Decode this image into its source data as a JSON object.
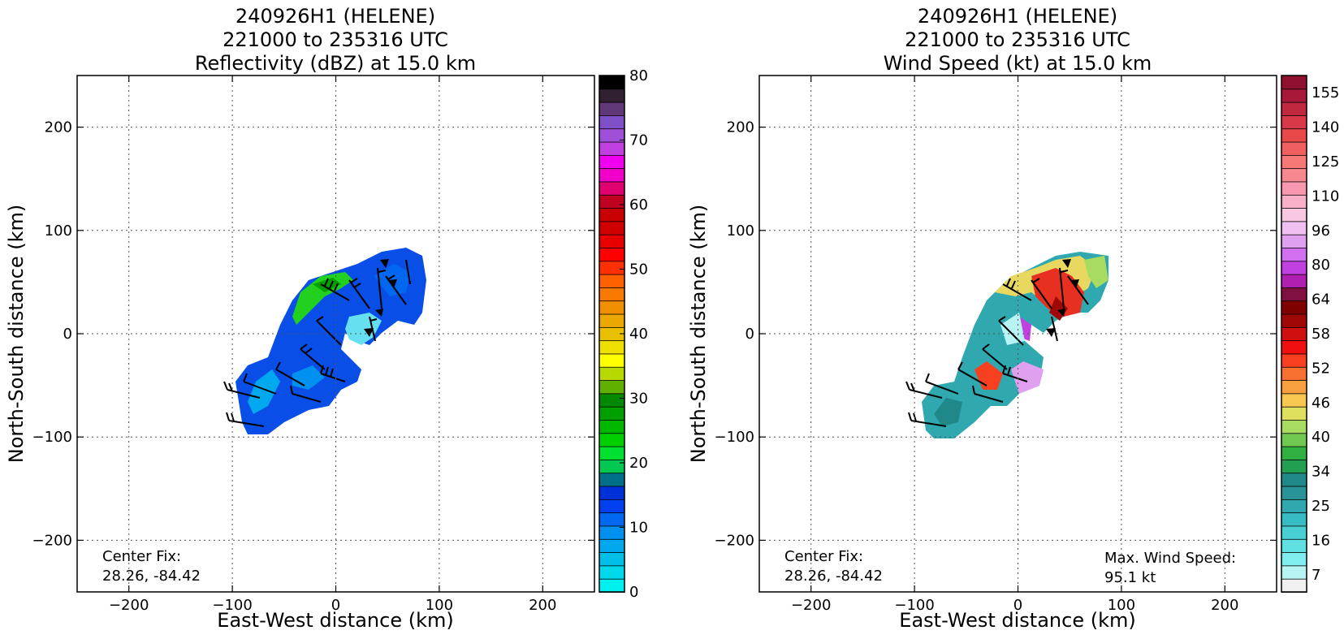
{
  "chart_data": [
    {
      "type": "heatmap",
      "title_lines": [
        "240926H1 (HELENE)",
        "221000 to 235316 UTC",
        "Reflectivity (dBZ) at 15.0 km"
      ],
      "xlabel": "East-West distance (km)",
      "ylabel": "North-South distance (km)",
      "xlim": [
        -250,
        250
      ],
      "ylim": [
        -250,
        250
      ],
      "xticks": [
        -200,
        -100,
        0,
        100,
        200
      ],
      "yticks": [
        -200,
        -100,
        0,
        100,
        200
      ],
      "grid": true,
      "annotation_left": [
        "Center Fix:",
        "28.26, -84.42"
      ],
      "colorbar": {
        "min": 0,
        "max": 80,
        "ticks": [
          0,
          10,
          20,
          30,
          40,
          50,
          60,
          70,
          80
        ],
        "colors": [
          "#00f0f0",
          "#00d8ec",
          "#00c0ea",
          "#00a8ee",
          "#0090f0",
          "#0068f0",
          "#0040f0",
          "#0030d8",
          "#007088",
          "#00c850",
          "#00e030",
          "#00d000",
          "#00b800",
          "#00a000",
          "#008800",
          "#60b000",
          "#b8d800",
          "#ffff00",
          "#f0e000",
          "#e8c000",
          "#eca800",
          "#f09000",
          "#f87800",
          "#ff6000",
          "#ff3000",
          "#ff0000",
          "#e80000",
          "#d00000",
          "#c80000",
          "#c00020",
          "#e00070",
          "#f000c8",
          "#f000f0",
          "#c040e0",
          "#a050d8",
          "#8050c8",
          "#603878",
          "#302030",
          "#000000"
        ]
      },
      "wind_barbs_plotted": true
    },
    {
      "type": "heatmap",
      "title_lines": [
        "240926H1 (HELENE)",
        "221000 to 235316 UTC",
        "Wind Speed (kt) at 15.0 km"
      ],
      "xlabel": "East-West distance (km)",
      "ylabel": "North-South distance (km)",
      "xlim": [
        -250,
        250
      ],
      "ylim": [
        -250,
        250
      ],
      "xticks": [
        -200,
        -100,
        0,
        100,
        200
      ],
      "yticks": [
        -200,
        -100,
        0,
        100,
        200
      ],
      "grid": true,
      "annotation_left": [
        "Center Fix:",
        "28.26, -84.42"
      ],
      "annotation_right": [
        "Max. Wind Speed:",
        "95.1 kt"
      ],
      "max_wind_speed_kt": 95.1,
      "colorbar": {
        "labels": [
          "7",
          "16",
          "25",
          "34",
          "40",
          "46",
          "52",
          "58",
          "64",
          "80",
          "96",
          "110",
          "125",
          "140",
          "155"
        ],
        "colors": [
          "#f0f0f0",
          "#b8f4f4",
          "#80eeee",
          "#60e0e0",
          "#48d0d4",
          "#38bcc4",
          "#30a8b0",
          "#289498",
          "#208888",
          "#20a050",
          "#30b040",
          "#70c850",
          "#a8dc60",
          "#e0e060",
          "#f8c850",
          "#f8a040",
          "#f87030",
          "#f84020",
          "#f01010",
          "#d01010",
          "#a00808",
          "#800000",
          "#801040",
          "#b020b0",
          "#c040e0",
          "#d070f0",
          "#e0a0f0",
          "#f0c0f0",
          "#f8c8e0",
          "#f8b0c8",
          "#f898b0",
          "#f88890",
          "#f87878",
          "#f06060",
          "#e84848",
          "#d83848",
          "#c02840",
          "#a81838",
          "#901030"
        ]
      },
      "wind_barbs_plotted": true
    }
  ]
}
